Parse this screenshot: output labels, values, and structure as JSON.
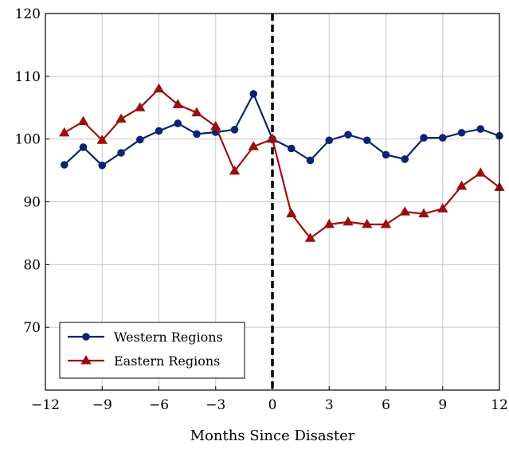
{
  "chart_data": {
    "type": "line",
    "title": "",
    "xlabel": "Months Since Disaster",
    "ylabel": "",
    "xlim": [
      -12,
      12
    ],
    "ylim": [
      60,
      120
    ],
    "xticks": [
      -12,
      -9,
      -6,
      -3,
      0,
      3,
      6,
      9,
      12
    ],
    "xtick_labels": [
      "−12",
      "−9",
      "−6",
      "−3",
      "0",
      "3",
      "6",
      "9",
      "12"
    ],
    "yticks": [
      70,
      80,
      90,
      100,
      110,
      120
    ],
    "ytick_labels": [
      "70",
      "80",
      "90",
      "100",
      "110",
      "120"
    ],
    "grid": true,
    "legend_position": "bottom-left",
    "reference_line": {
      "x": 0,
      "style": "dashed",
      "color": "#000000"
    },
    "x": [
      -11,
      -10,
      -9,
      -8,
      -7,
      -6,
      -5,
      -4,
      -3,
      -2,
      -1,
      0,
      1,
      2,
      3,
      4,
      5,
      6,
      7,
      8,
      9,
      10,
      11,
      12
    ],
    "series": [
      {
        "name": "Western Regions",
        "color": "#0a2472",
        "marker": "circle",
        "values": [
          95.9,
          98.7,
          95.8,
          97.8,
          99.9,
          101.3,
          102.5,
          100.8,
          101.1,
          101.5,
          107.2,
          100.0,
          98.5,
          96.6,
          99.8,
          100.7,
          99.8,
          97.5,
          96.8,
          100.2,
          100.2,
          101.0,
          101.6,
          100.5
        ]
      },
      {
        "name": "Eastern Regions",
        "color": "#9b0e0e",
        "marker": "triangle",
        "values": [
          101.0,
          102.8,
          99.8,
          103.2,
          105.0,
          108.0,
          105.5,
          104.2,
          102.0,
          94.9,
          98.8,
          100.0,
          88.1,
          84.2,
          86.4,
          86.8,
          86.4,
          86.4,
          88.4,
          88.1,
          88.9,
          92.5,
          94.6,
          92.3
        ]
      }
    ]
  }
}
